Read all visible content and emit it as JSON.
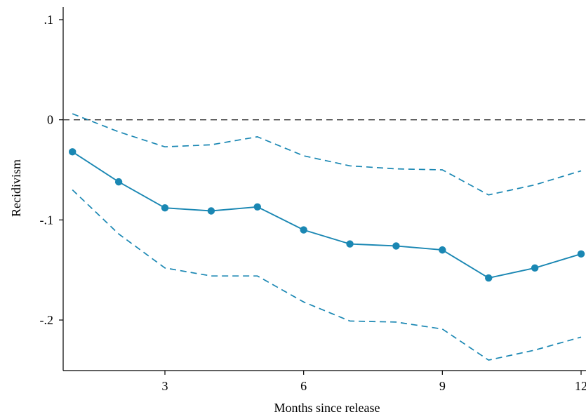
{
  "chart_data": {
    "type": "line",
    "title": "",
    "xlabel": "Months since release",
    "ylabel": "Recidivism",
    "x": [
      1,
      2,
      3,
      4,
      5,
      6,
      7,
      8,
      9,
      10,
      11,
      12
    ],
    "xlim": [
      0.8,
      12.2
    ],
    "ylim": [
      -0.25,
      0.105
    ],
    "xticks": [
      {
        "value": 3,
        "label": "3"
      },
      {
        "value": 6,
        "label": "6"
      },
      {
        "value": 9,
        "label": "9"
      },
      {
        "value": 12,
        "label": "12"
      }
    ],
    "yticks": [
      {
        "value": 0.1,
        "label": ".1"
      },
      {
        "value": 0,
        "label": "0"
      },
      {
        "value": -0.1,
        "label": "-.1"
      },
      {
        "value": -0.2,
        "label": "-.2"
      }
    ],
    "reference_line": {
      "y": 0,
      "style": "dashed",
      "color": "#333333"
    },
    "series": [
      {
        "role": "estimate",
        "style": "solid-markers",
        "color": "#1A87B3",
        "values": [
          -0.032,
          -0.062,
          -0.088,
          -0.091,
          -0.087,
          -0.11,
          -0.124,
          -0.126,
          -0.13,
          -0.158,
          -0.148,
          -0.134
        ]
      },
      {
        "role": "upper-ci",
        "style": "dashed",
        "color": "#1A87B3",
        "values": [
          0.006,
          -0.012,
          -0.027,
          -0.025,
          -0.017,
          -0.036,
          -0.046,
          -0.049,
          -0.05,
          -0.075,
          -0.065,
          -0.051
        ]
      },
      {
        "role": "lower-ci",
        "style": "dashed",
        "color": "#1A87B3",
        "values": [
          -0.07,
          -0.114,
          -0.148,
          -0.156,
          -0.156,
          -0.182,
          -0.201,
          -0.202,
          -0.209,
          -0.24,
          -0.23,
          -0.217
        ]
      }
    ],
    "grid": false,
    "legend": "none"
  }
}
